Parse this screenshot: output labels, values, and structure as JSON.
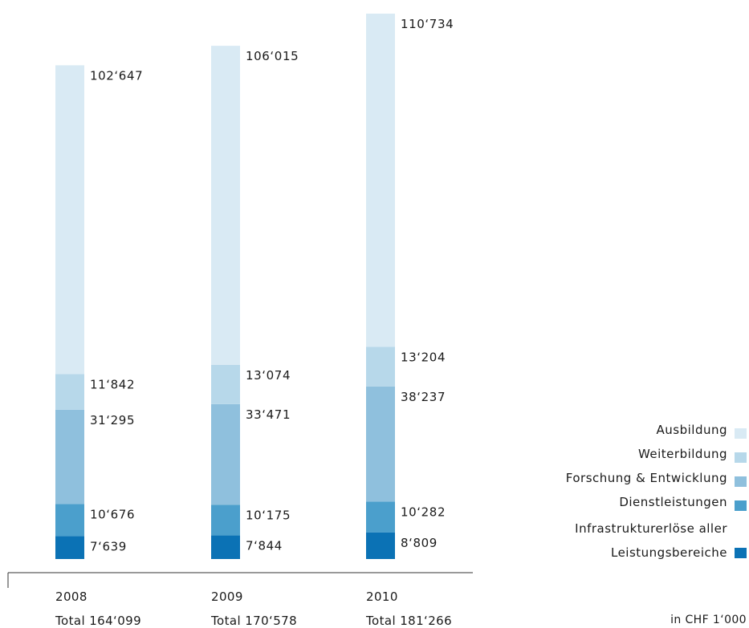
{
  "chart_data": {
    "type": "bar",
    "stacked": true,
    "categories": [
      "2008",
      "2009",
      "2010"
    ],
    "totals": [
      "Total 164‘099",
      "Total 170‘578",
      "Total 181‘266"
    ],
    "unit": "in CHF 1‘000",
    "series": [
      {
        "name": "Leistungsbereiche",
        "legend_lines": [
          "Infrastrukturerlöse aller",
          "Leistungsbereiche"
        ],
        "color": "#0b72b5",
        "values": [
          7639,
          7844,
          8809
        ],
        "labels": [
          "7‘639",
          "7‘844",
          "8‘809"
        ]
      },
      {
        "name": "Dienstleistungen",
        "legend_lines": [
          "Dienstleistungen"
        ],
        "color": "#4b9fcc",
        "values": [
          10676,
          10175,
          10282
        ],
        "labels": [
          "10‘676",
          "10‘175",
          "10‘282"
        ]
      },
      {
        "name": "Forschung & Entwicklung",
        "legend_lines": [
          "Forschung & Entwicklung"
        ],
        "color": "#8fc0dd",
        "values": [
          31295,
          33471,
          38237
        ],
        "labels": [
          "31‘295",
          "33‘471",
          "38‘237"
        ]
      },
      {
        "name": "Weiterbildung",
        "legend_lines": [
          "Weiterbildung"
        ],
        "color": "#b7d8ea",
        "values": [
          11842,
          13074,
          13204
        ],
        "labels": [
          "11‘842",
          "13‘074",
          "13‘204"
        ]
      },
      {
        "name": "Ausbildung",
        "legend_lines": [
          "Ausbildung"
        ],
        "color": "#d9eaf4",
        "values": [
          102647,
          106015,
          110734
        ],
        "labels": [
          "102‘647",
          "106‘015",
          "110‘734"
        ]
      }
    ],
    "legend_order": [
      "Ausbildung",
      "Weiterbildung",
      "Forschung & Entwicklung",
      "Dienstleistungen",
      "Leistungsbereiche"
    ],
    "legend_position": "right",
    "grid": false,
    "ylim": [
      0,
      181266
    ]
  }
}
